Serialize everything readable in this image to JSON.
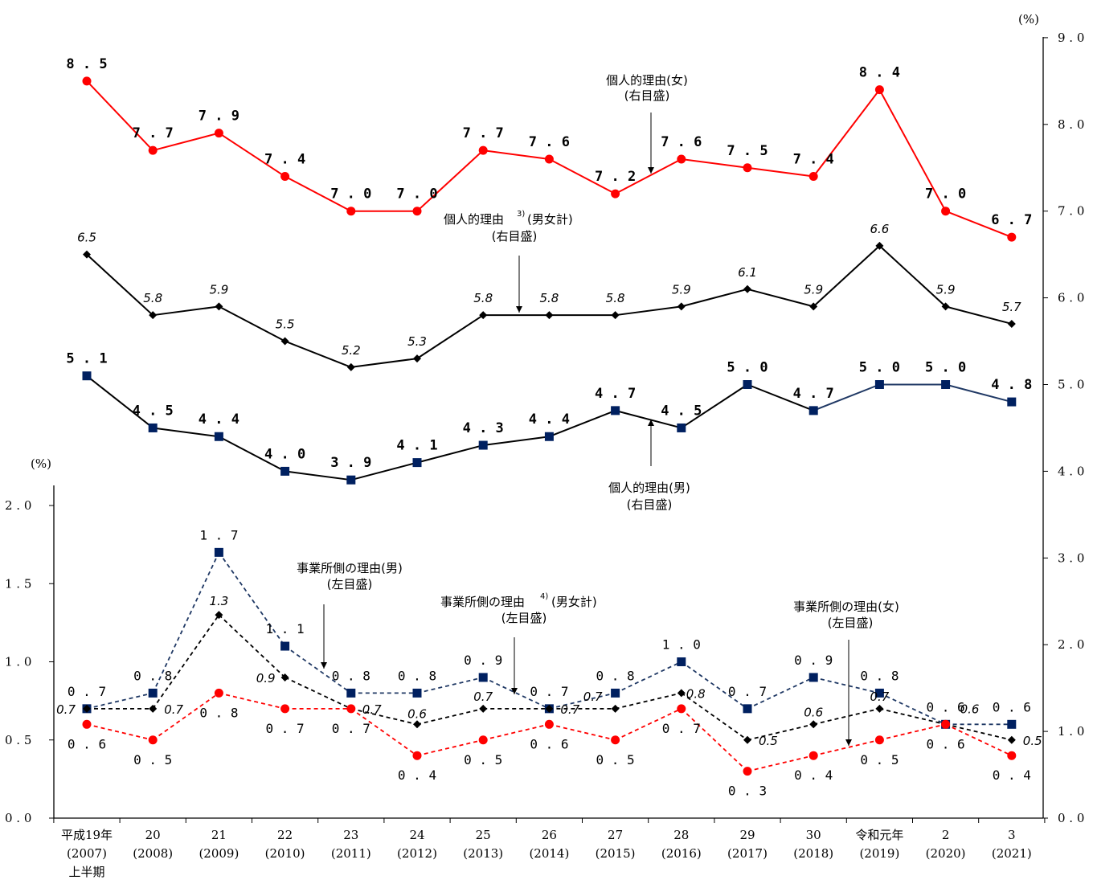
{
  "chart_data": {
    "type": "line",
    "categories": [
      [
        "平成19年",
        "(2007)",
        "上半期"
      ],
      [
        "20",
        "(2008)"
      ],
      [
        "21",
        "(2009)"
      ],
      [
        "22",
        "(2010)"
      ],
      [
        "23",
        "(2011)"
      ],
      [
        "24",
        "(2012)"
      ],
      [
        "25",
        "(2013)"
      ],
      [
        "26",
        "(2014)"
      ],
      [
        "27",
        "(2015)"
      ],
      [
        "28",
        "(2016)"
      ],
      [
        "29",
        "(2017)"
      ],
      [
        "30",
        "(2018)"
      ],
      [
        "令和元年",
        "(2019)"
      ],
      [
        "2",
        "(2020)"
      ],
      [
        "3",
        "(2021)"
      ]
    ],
    "left_axis": {
      "unit": "(%)",
      "range": [
        0,
        2.0
      ],
      "ticks": [
        0.0,
        0.5,
        1.0,
        1.5,
        2.0
      ],
      "tick_labels": [
        "0.0",
        "0.5",
        "1.0",
        "1.5",
        "2.0"
      ]
    },
    "right_axis": {
      "unit": "(%)",
      "range": [
        0,
        9.0
      ],
      "ticks": [
        0.0,
        1.0,
        2.0,
        3.0,
        4.0,
        5.0,
        6.0,
        7.0,
        8.0,
        9.0
      ],
      "tick_labels": [
        "0.0",
        "1.0",
        "2.0",
        "3.0",
        "4.0",
        "5.0",
        "6.0",
        "7.0",
        "8.0",
        "9.0"
      ]
    },
    "series": [
      {
        "axis": "right",
        "color": "#ff0000",
        "marker": "circle",
        "dash": false,
        "label_style": "bold",
        "values": [
          8.5,
          7.7,
          7.9,
          7.4,
          7.0,
          7.0,
          7.7,
          7.6,
          7.2,
          7.6,
          7.5,
          7.4,
          8.4,
          7.0,
          6.7
        ]
      },
      {
        "axis": "right",
        "color": "#000000",
        "marker": "diamond",
        "dash": false,
        "label_style": "italic",
        "values": [
          6.5,
          5.8,
          5.9,
          5.5,
          5.2,
          5.3,
          5.8,
          5.8,
          5.8,
          5.9,
          6.1,
          5.9,
          6.6,
          5.9,
          5.7
        ]
      },
      {
        "axis": "right",
        "color": "#000000",
        "marker": "square",
        "marker_color": "#002060",
        "dash": false,
        "label_style": "bold",
        "values": [
          5.1,
          4.5,
          4.4,
          4.0,
          3.9,
          4.1,
          4.3,
          4.4,
          4.7,
          4.5,
          5.0,
          4.7,
          5.0,
          5.0,
          4.8
        ]
      },
      {
        "axis": "left",
        "color": "#1f3864",
        "marker": "square",
        "marker_color": "#002060",
        "dash": true,
        "label_style": "plain",
        "values": [
          0.7,
          0.8,
          1.7,
          1.1,
          0.8,
          0.8,
          0.9,
          0.7,
          0.8,
          1.0,
          0.7,
          0.9,
          0.8,
          0.6,
          0.6
        ]
      },
      {
        "axis": "left",
        "color": "#000000",
        "marker": "diamond",
        "dash": true,
        "label_style": "italic",
        "values": [
          0.7,
          0.7,
          1.3,
          0.9,
          0.7,
          0.6,
          0.7,
          0.7,
          0.7,
          0.8,
          0.5,
          0.6,
          0.7,
          0.6,
          0.5
        ]
      },
      {
        "axis": "left",
        "color": "#ff0000",
        "marker": "circle",
        "dash": true,
        "label_style": "plain",
        "values": [
          0.6,
          0.5,
          0.8,
          0.7,
          0.7,
          0.4,
          0.5,
          0.6,
          0.5,
          0.7,
          0.3,
          0.4,
          0.5,
          0.6,
          0.4
        ]
      }
    ],
    "annotations": [
      {
        "lines": [
          "個人的理由(女)",
          "(右目盛)"
        ]
      },
      {
        "lines": [
          "個人的理由",
          "(男女計)",
          "(右目盛)"
        ],
        "superscript": "3)"
      },
      {
        "lines": [
          "個人的理由(男)",
          "(右目盛)"
        ]
      },
      {
        "lines": [
          "事業所側の理由(男)",
          "(左目盛)"
        ]
      },
      {
        "lines": [
          "事業所側の理由",
          "(男女計)",
          "(左目盛)"
        ],
        "superscript": "4)"
      },
      {
        "lines": [
          "事業所側の理由(女)",
          "(左目盛)"
        ]
      }
    ]
  }
}
